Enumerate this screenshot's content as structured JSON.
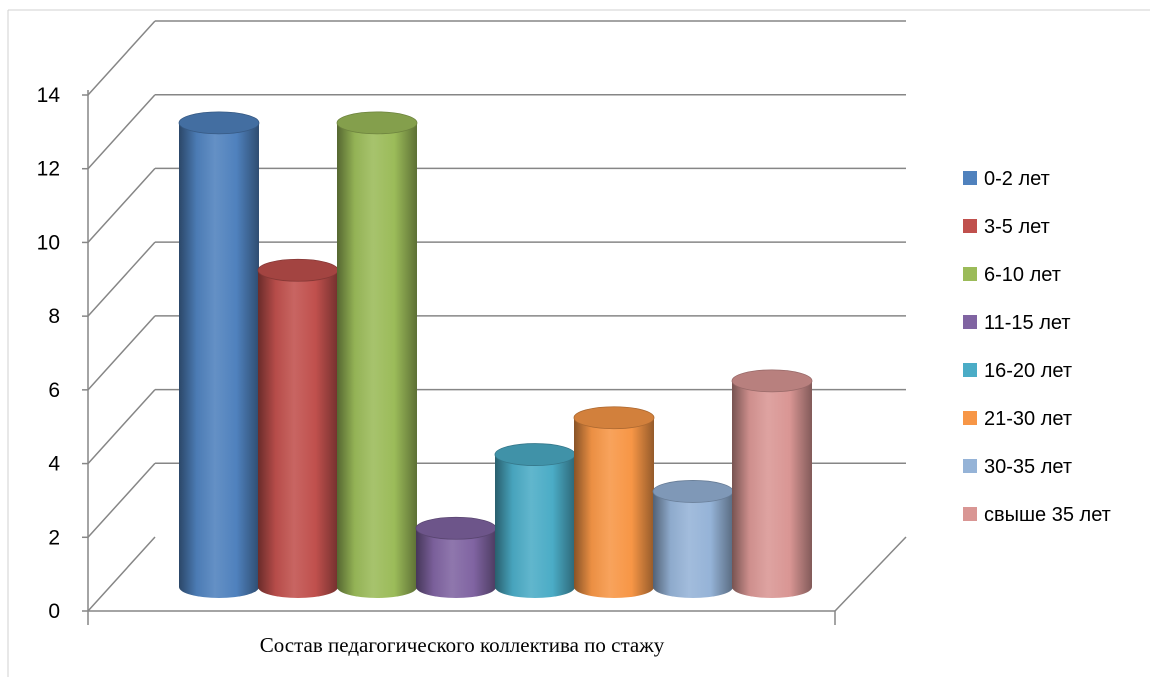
{
  "chart_data": {
    "type": "bar",
    "categories": [
      "Состав педагогического коллектива по стажу"
    ],
    "series": [
      {
        "name": "0-2 лет",
        "values": [
          13
        ],
        "color": "#4F81BD"
      },
      {
        "name": "3-5 лет",
        "values": [
          9
        ],
        "color": "#C0504D"
      },
      {
        "name": "6-10 лет",
        "values": [
          13
        ],
        "color": "#9BBB59"
      },
      {
        "name": "11-15 лет",
        "values": [
          2
        ],
        "color": "#8064A2"
      },
      {
        "name": "16-20 лет",
        "values": [
          4
        ],
        "color": "#4BACC6"
      },
      {
        "name": "21-30 лет",
        "values": [
          5
        ],
        "color": "#F79646"
      },
      {
        "name": "30-35 лет",
        "values": [
          3
        ],
        "color": "#95B3D7"
      },
      {
        "name": "свыше 35 лет",
        "values": [
          6
        ],
        "color": "#D99694"
      }
    ],
    "yticks": [
      "0",
      "2",
      "4",
      "6",
      "8",
      "10",
      "12",
      "14"
    ],
    "ylim": [
      0,
      14
    ],
    "grid": true,
    "legend": "right",
    "style": "3d-cylinder"
  }
}
